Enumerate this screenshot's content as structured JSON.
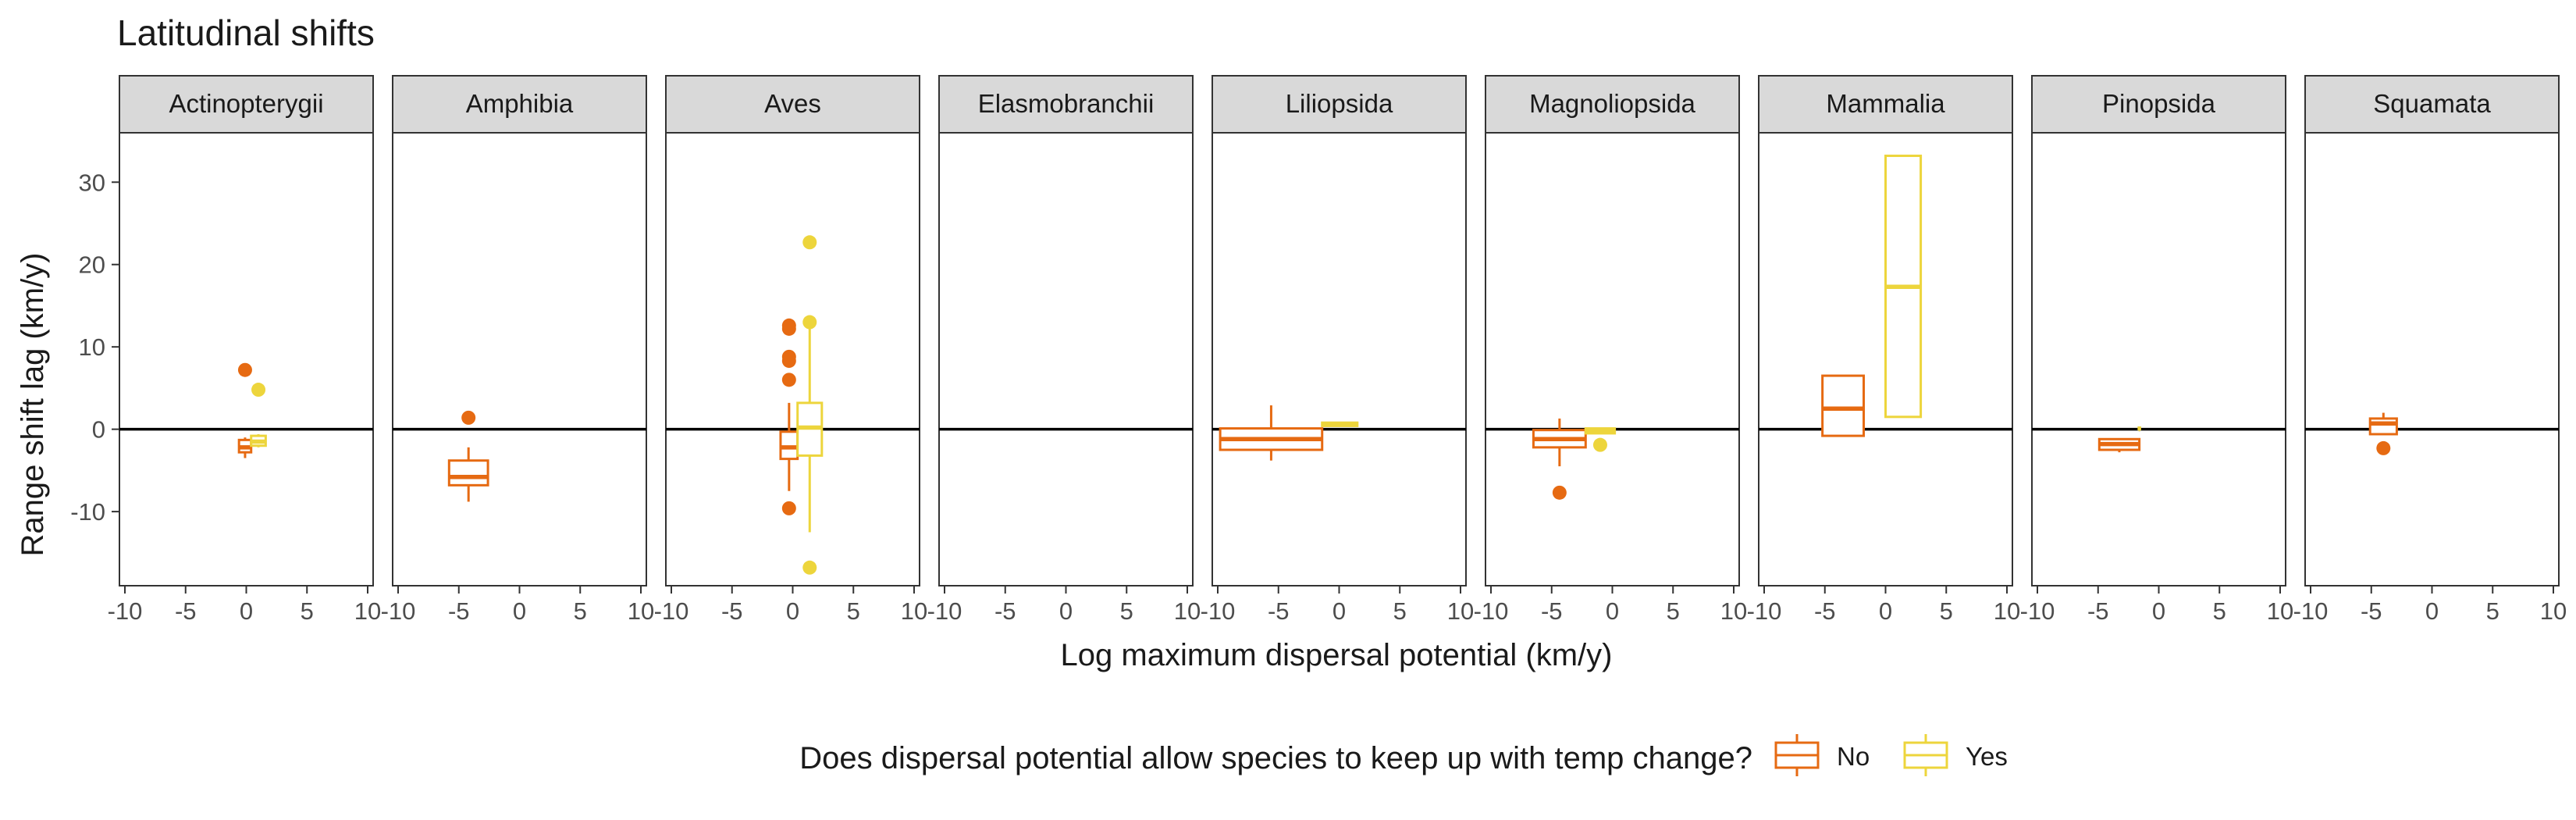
{
  "chart_data": {
    "type": "box",
    "title": "Latitudinal shifts",
    "xlabel": "Log maximum dispersal potential (km/y)",
    "ylabel": "Range shift lag (km/y)",
    "xlim": [
      -10,
      10
    ],
    "ylim": [
      -19,
      36
    ],
    "x_ticks": [
      -10,
      -5,
      0,
      5,
      10
    ],
    "y_ticks": [
      -10,
      0,
      10,
      20,
      30
    ],
    "hline": 0,
    "grid": false,
    "legend": {
      "title": "Does dispersal potential allow species to keep up with temp change?",
      "position": "bottom",
      "items": [
        {
          "key": "No",
          "label": "No",
          "color": "#E66A12"
        },
        {
          "key": "Yes",
          "label": "Yes",
          "color": "#EDD53C"
        }
      ]
    },
    "panels": [
      {
        "name": "Actinopterygii",
        "boxes": [
          {
            "group": "No",
            "xmin": -0.6,
            "xmax": 0.4,
            "q1": -2.8,
            "median": -2.2,
            "q3": -1.3,
            "wlo": -3.5,
            "whi": -1.0,
            "outliers": [
              7.2
            ]
          },
          {
            "group": "Yes",
            "xmin": 0.4,
            "xmax": 1.6,
            "q1": -2.0,
            "median": -1.5,
            "q3": -0.8,
            "wlo": -2.2,
            "whi": -0.6,
            "outliers": [
              4.8
            ]
          }
        ]
      },
      {
        "name": "Amphibia",
        "boxes": [
          {
            "group": "No",
            "xmin": -5.8,
            "xmax": -2.6,
            "q1": -6.8,
            "median": -5.8,
            "q3": -3.8,
            "wlo": -8.8,
            "whi": -2.2,
            "outliers": [
              1.4
            ]
          }
        ]
      },
      {
        "name": "Aves",
        "boxes": [
          {
            "group": "No",
            "xmin": -1.0,
            "xmax": 0.4,
            "q1": -3.6,
            "median": -2.2,
            "q3": -0.3,
            "wlo": -7.5,
            "whi": 3.2,
            "outliers": [
              12.6,
              12.2,
              8.8,
              8.3,
              6.0,
              -9.6
            ]
          },
          {
            "group": "Yes",
            "xmin": 0.4,
            "xmax": 2.4,
            "q1": -3.2,
            "median": 0.2,
            "q3": 3.2,
            "wlo": -12.5,
            "whi": 12.5,
            "outliers": [
              22.7,
              13.0,
              -16.8
            ]
          }
        ]
      },
      {
        "name": "Elasmobranchii",
        "boxes": []
      },
      {
        "name": "Liliopsida",
        "boxes": [
          {
            "group": "No",
            "xmin": -9.8,
            "xmax": -1.4,
            "q1": -2.5,
            "median": -1.2,
            "q3": 0.1,
            "wlo": -3.8,
            "whi": 2.9,
            "outliers": []
          },
          {
            "group": "Yes",
            "xmin": -1.4,
            "xmax": 1.5,
            "q1": 0.4,
            "median": 0.6,
            "q3": 0.8,
            "wlo": 0.4,
            "whi": 0.8,
            "outliers": []
          }
        ]
      },
      {
        "name": "Magnoliopsida",
        "boxes": [
          {
            "group": "No",
            "xmin": -6.5,
            "xmax": -2.2,
            "q1": -2.2,
            "median": -1.2,
            "q3": -0.1,
            "wlo": -4.5,
            "whi": 1.3,
            "outliers": [
              -7.7
            ]
          },
          {
            "group": "Yes",
            "xmin": -2.2,
            "xmax": 0.2,
            "q1": -0.5,
            "median": -0.2,
            "q3": 0.1,
            "wlo": -0.6,
            "whi": 0.2,
            "outliers": [
              -1.9
            ]
          }
        ]
      },
      {
        "name": "Mammalia",
        "boxes": [
          {
            "group": "No",
            "xmin": -5.2,
            "xmax": -1.8,
            "q1": -0.8,
            "median": 2.5,
            "q3": 6.5,
            "wlo": -0.8,
            "whi": 6.5,
            "outliers": []
          },
          {
            "group": "Yes",
            "xmin": 0.0,
            "xmax": 2.9,
            "q1": 1.5,
            "median": 17.3,
            "q3": 33.2,
            "wlo": 1.5,
            "whi": 33.2,
            "outliers": []
          }
        ]
      },
      {
        "name": "Pinopsida",
        "boxes": [
          {
            "group": "No",
            "xmin": -4.9,
            "xmax": -1.6,
            "q1": -2.5,
            "median": -1.8,
            "q3": -1.2,
            "wlo": -2.8,
            "whi": -1.2,
            "outliers": []
          },
          {
            "group": "Yes",
            "xmin": -1.65,
            "xmax": -1.55,
            "q1": 0.0,
            "median": 0.0,
            "q3": 0.2,
            "wlo": 0.0,
            "whi": 0.3,
            "outliers": []
          }
        ]
      },
      {
        "name": "Squamata",
        "boxes": [
          {
            "group": "No",
            "xmin": -5.1,
            "xmax": -2.9,
            "q1": -0.6,
            "median": 0.7,
            "q3": 1.3,
            "wlo": -0.6,
            "whi": 2.0,
            "outliers": [
              -2.3
            ]
          }
        ]
      }
    ]
  }
}
